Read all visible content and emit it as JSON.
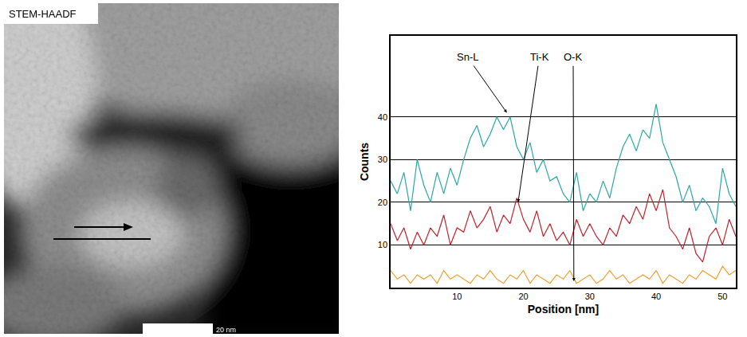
{
  "image": {
    "label": "STEM-HAADF",
    "scale_bar": "20 nm"
  },
  "chart_data": {
    "type": "line",
    "x_label": "Position [nm]",
    "y_label": "Counts",
    "x": [
      0,
      1,
      2,
      3,
      4,
      5,
      6,
      7,
      8,
      9,
      10,
      11,
      12,
      13,
      14,
      15,
      16,
      17,
      18,
      19,
      20,
      21,
      22,
      23,
      24,
      25,
      26,
      27,
      28,
      29,
      30,
      31,
      32,
      33,
      34,
      35,
      36,
      37,
      38,
      39,
      40,
      41,
      42,
      43,
      44,
      45,
      46,
      47,
      48,
      49,
      50,
      51,
      52
    ],
    "series": [
      {
        "name": "Sn-L",
        "color": "#2aa8a8",
        "values": [
          25,
          22,
          27,
          18,
          30,
          24,
          20,
          27,
          22,
          28,
          24,
          30,
          35,
          38,
          33,
          36,
          40,
          37,
          40,
          33,
          30,
          34,
          27,
          30,
          25,
          26,
          22,
          20,
          27,
          18,
          22,
          20,
          25,
          21,
          28,
          33,
          36,
          32,
          37,
          35,
          43,
          34,
          30,
          26,
          20,
          24,
          18,
          21,
          19,
          15,
          28,
          22,
          19
        ]
      },
      {
        "name": "Ti-K",
        "color": "#c8202a",
        "values": [
          15,
          11,
          14,
          9,
          13,
          10,
          14,
          12,
          17,
          10,
          14,
          13,
          18,
          14,
          16,
          19,
          13,
          17,
          15,
          21,
          16,
          13,
          18,
          12,
          15,
          11,
          13,
          10,
          16,
          12,
          15,
          12,
          10,
          14,
          12,
          17,
          15,
          19,
          16,
          22,
          18,
          23,
          14,
          12,
          9,
          14,
          8,
          6,
          12,
          14,
          10,
          16,
          12
        ]
      },
      {
        "name": "O-K",
        "color": "#f0a030",
        "values": [
          4,
          2,
          3,
          1,
          3,
          2,
          3,
          1,
          4,
          2,
          3,
          2,
          1,
          3,
          2,
          4,
          2,
          1,
          3,
          2,
          4,
          1,
          3,
          2,
          1,
          3,
          2,
          4,
          1,
          2,
          3,
          1,
          2,
          4,
          2,
          3,
          1,
          2,
          3,
          2,
          4,
          1,
          3,
          2,
          1,
          3,
          2,
          4,
          3,
          2,
          5,
          3,
          4
        ]
      }
    ],
    "annotations": [
      {
        "text": "Sn-L",
        "x": 17.5,
        "y": 41,
        "text_x": 11.6,
        "text_y": 54
      },
      {
        "text": "Ti-K",
        "x": 19.2,
        "y": 20,
        "text_x": 22.4,
        "text_y": 54
      },
      {
        "text": "O-K",
        "x": 27.6,
        "y": 1.5,
        "text_x": 27.5,
        "text_y": 54
      }
    ],
    "xlim": [
      0,
      52
    ],
    "ylim": [
      0,
      59
    ],
    "xticks": [
      10,
      20,
      30,
      40,
      50
    ],
    "yticks": [
      10,
      20,
      30,
      40
    ],
    "grid": true
  }
}
